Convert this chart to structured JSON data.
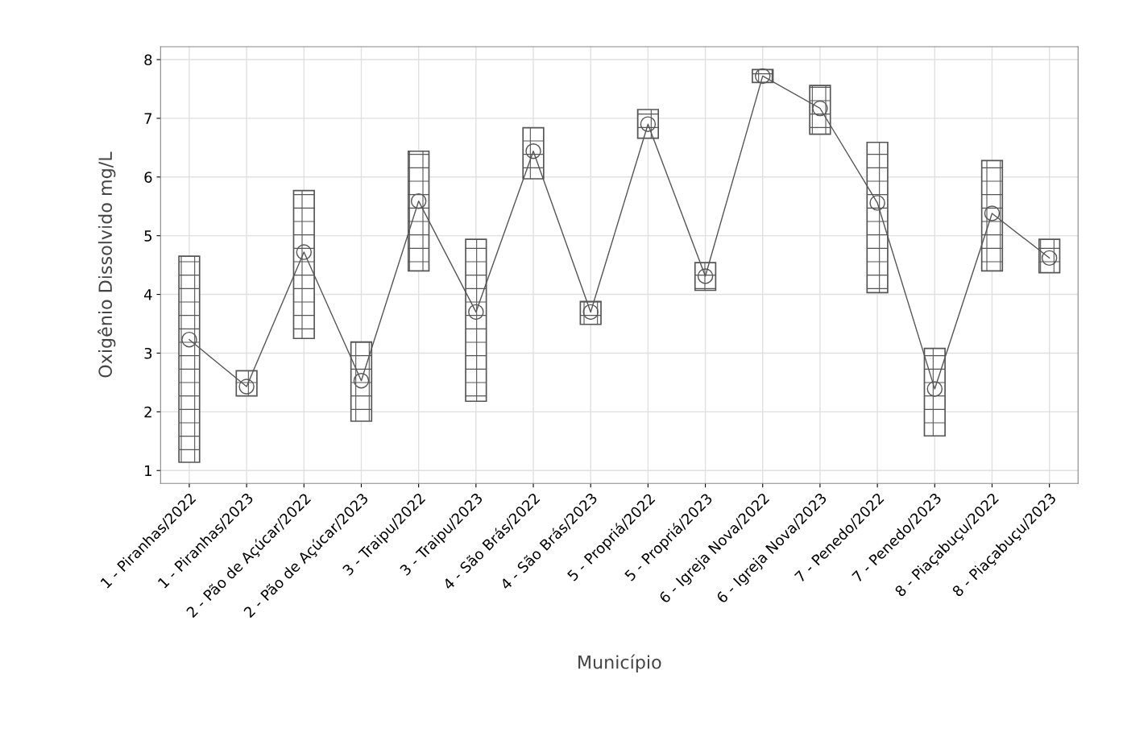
{
  "chart_data": {
    "type": "bar",
    "xlabel": "Município",
    "ylabel": "Oxigênio Dissolvido mg/L",
    "categories": [
      "1 - Piranhas/2022",
      "1 - Piranhas/2023",
      "2 - Pão de Açúcar/2022",
      "2 - Pão de Açúcar/2023",
      "3 - Traipu/2022",
      "3 - Traipu/2023",
      "4 - São Brás/2022",
      "4 - São Brás/2023",
      "5 - Propriá/2022",
      "5 - Propriá/2023",
      "6 - Igreja Nova/2022",
      "6 - Igreja Nova/2023",
      "7 - Penedo/2022",
      "7 - Penedo/2023",
      "8 - Piaçabuçu/2022",
      "8 - Piaçabuçu/2023"
    ],
    "series": [
      {
        "color": "#555555",
        "base": [
          1.14,
          2.27,
          3.25,
          1.84,
          4.4,
          2.18,
          5.97,
          3.49,
          6.66,
          4.07,
          7.61,
          6.73,
          4.03,
          1.59,
          4.4,
          4.37
        ],
        "values": [
          3.51,
          0.43,
          2.52,
          1.35,
          2.04,
          2.76,
          0.87,
          0.39,
          0.49,
          0.47,
          0.22,
          0.83,
          2.56,
          1.49,
          1.88,
          0.57
        ]
      },
      {
        "type": "line",
        "color": "#555555",
        "marker": "circle",
        "values": [
          3.23,
          2.43,
          4.72,
          2.53,
          5.59,
          3.7,
          6.44,
          3.7,
          6.9,
          4.31,
          7.72,
          7.17,
          5.56,
          2.39,
          5.38,
          4.62
        ]
      }
    ],
    "ylim": [
      0.78,
      8.22
    ],
    "yticks": [
      1,
      2,
      3,
      4,
      5,
      6,
      7,
      8
    ],
    "grid": true
  }
}
